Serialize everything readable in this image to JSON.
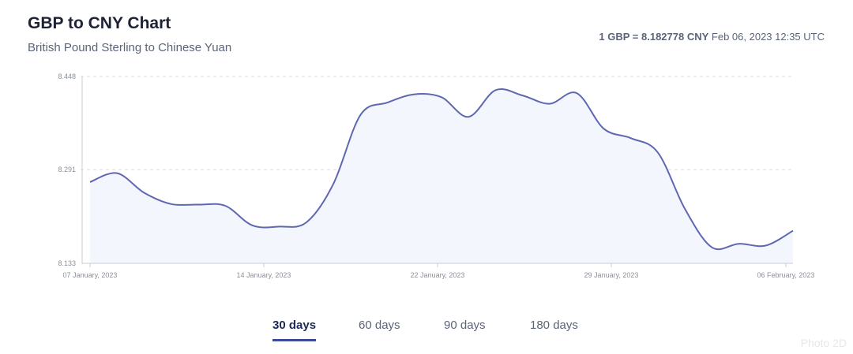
{
  "header": {
    "title": "GBP to CNY Chart",
    "subtitle": "British Pound Sterling to Chinese Yuan",
    "rate_label": "1 GBP = 8.182778 CNY",
    "timestamp": "Feb 06, 2023 12:35 UTC"
  },
  "tabs": [
    {
      "label": "30 days",
      "active": true
    },
    {
      "label": "60 days",
      "active": false
    },
    {
      "label": "90 days",
      "active": false
    },
    {
      "label": "180 days",
      "active": false
    }
  ],
  "watermark": "Photo 2D",
  "colors": {
    "line": "#5f67b0",
    "fill": "#f3f6fd",
    "grid": "#d9dce3"
  },
  "chart_data": {
    "type": "area",
    "title": "GBP to CNY Chart",
    "xlabel": "",
    "ylabel": "",
    "ylim": [
      8.133,
      8.448
    ],
    "y_ticks": [
      "8.448",
      "8.291",
      "8.133"
    ],
    "x_ticks": [
      "07 January, 2023",
      "14 January, 2023",
      "22 January, 2023",
      "29 January, 2023",
      "06 February, 2023"
    ],
    "grid": true,
    "series": [
      {
        "values": [
          8.27,
          8.285,
          8.252,
          8.233,
          8.232,
          8.23,
          8.197,
          8.195,
          8.202,
          8.267,
          8.383,
          8.404,
          8.418,
          8.413,
          8.38,
          8.425,
          8.416,
          8.402,
          8.42,
          8.36,
          8.344,
          8.32,
          8.225,
          8.16,
          8.166,
          8.163,
          8.188
        ]
      }
    ]
  }
}
